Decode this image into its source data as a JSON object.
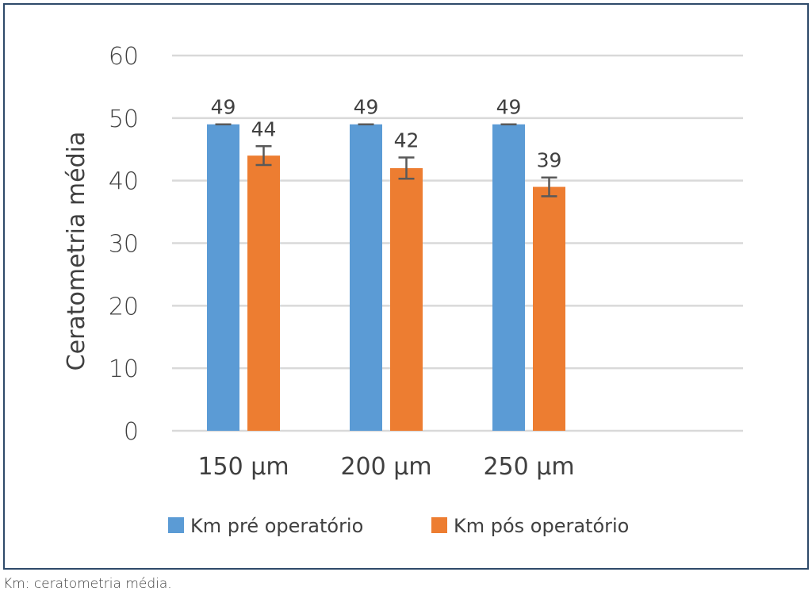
{
  "chart_data": {
    "type": "bar",
    "title": "",
    "xlabel": "",
    "ylabel": "Ceratometria média",
    "ylim": [
      0,
      60
    ],
    "yticks": [
      0,
      10,
      20,
      30,
      40,
      50,
      60
    ],
    "grid": true,
    "legend_position": "bottom",
    "categories": [
      "150 µm",
      "200 µm",
      "250 µm",
      ""
    ],
    "series": [
      {
        "name": "Km pré operatório",
        "color": "#5B9BD5",
        "values": [
          49,
          49,
          49,
          null
        ],
        "error": [
          0,
          0,
          0,
          null
        ],
        "labels": [
          "49",
          "49",
          "49",
          ""
        ]
      },
      {
        "name": "Km pós operatório",
        "color": "#ED7D31",
        "values": [
          44,
          42,
          39,
          null
        ],
        "error": [
          1.5,
          1.7,
          1.5,
          null
        ],
        "labels": [
          "44",
          "42",
          "39",
          ""
        ]
      }
    ]
  },
  "caption": "Km: ceratometria média."
}
